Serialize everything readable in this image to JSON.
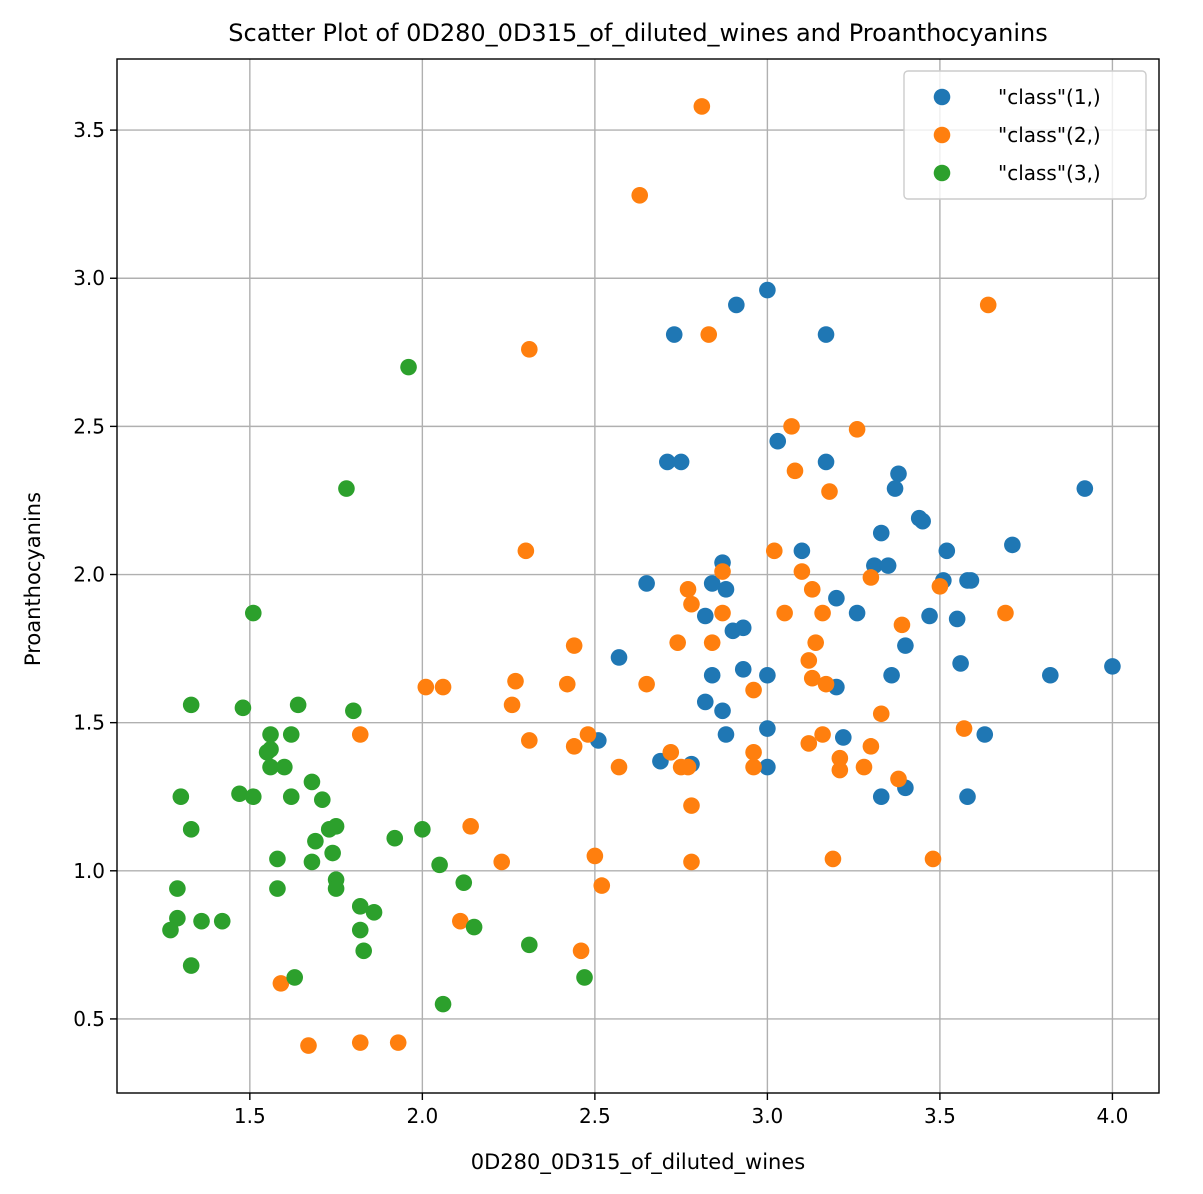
{
  "chart_data": {
    "type": "scatter",
    "title": "Scatter Plot of 0D280_0D315_of_diluted_wines and Proanthocyanins",
    "xlabel": "0D280_0D315_of_diluted_wines",
    "ylabel": "Proanthocyanins",
    "xlim": [
      1.115,
      4.135
    ],
    "ylim": [
      0.25,
      3.74
    ],
    "xticks": [
      1.5,
      2.0,
      2.5,
      3.0,
      3.5,
      4.0
    ],
    "xtick_labels": [
      "1.5",
      "2.0",
      "2.5",
      "3.0",
      "3.5",
      "4.0"
    ],
    "yticks": [
      0.5,
      1.0,
      1.5,
      2.0,
      2.5,
      3.0,
      3.5
    ],
    "ytick_labels": [
      "0.5",
      "1.0",
      "1.5",
      "2.0",
      "2.5",
      "3.0",
      "3.5"
    ],
    "grid": true,
    "legend_position": "top-right",
    "series": [
      {
        "name": "\"class\"(1,)",
        "color": "#1f77b4",
        "points": [
          [
            3.0,
            2.96
          ],
          [
            2.91,
            2.91
          ],
          [
            2.73,
            2.81
          ],
          [
            3.17,
            2.81
          ],
          [
            3.03,
            2.45
          ],
          [
            2.71,
            2.38
          ],
          [
            2.75,
            2.38
          ],
          [
            3.17,
            2.38
          ],
          [
            3.38,
            2.34
          ],
          [
            3.37,
            2.29
          ],
          [
            3.92,
            2.29
          ],
          [
            3.44,
            2.19
          ],
          [
            3.45,
            2.18
          ],
          [
            3.33,
            2.14
          ],
          [
            3.71,
            2.1
          ],
          [
            3.1,
            2.08
          ],
          [
            3.52,
            2.08
          ],
          [
            2.87,
            2.04
          ],
          [
            3.31,
            2.03
          ],
          [
            3.35,
            2.03
          ],
          [
            2.65,
            1.97
          ],
          [
            2.84,
            1.97
          ],
          [
            2.88,
            1.95
          ],
          [
            3.51,
            1.98
          ],
          [
            3.58,
            1.98
          ],
          [
            3.59,
            1.98
          ],
          [
            3.2,
            1.92
          ],
          [
            2.82,
            1.86
          ],
          [
            3.26,
            1.87
          ],
          [
            3.47,
            1.86
          ],
          [
            3.55,
            1.85
          ],
          [
            2.9,
            1.81
          ],
          [
            2.93,
            1.82
          ],
          [
            3.4,
            1.76
          ],
          [
            2.57,
            1.72
          ],
          [
            3.56,
            1.7
          ],
          [
            4.0,
            1.69
          ],
          [
            2.93,
            1.68
          ],
          [
            2.84,
            1.66
          ],
          [
            3.0,
            1.66
          ],
          [
            3.36,
            1.66
          ],
          [
            3.82,
            1.66
          ],
          [
            3.2,
            1.62
          ],
          [
            2.82,
            1.57
          ],
          [
            2.87,
            1.54
          ],
          [
            3.0,
            1.48
          ],
          [
            2.51,
            1.44
          ],
          [
            2.88,
            1.46
          ],
          [
            3.22,
            1.45
          ],
          [
            3.63,
            1.46
          ],
          [
            2.69,
            1.37
          ],
          [
            2.78,
            1.36
          ],
          [
            3.0,
            1.35
          ],
          [
            3.33,
            1.25
          ],
          [
            3.4,
            1.28
          ],
          [
            3.58,
            1.25
          ]
        ]
      },
      {
        "name": "\"class\"(2,)",
        "color": "#ff7f0e",
        "points": [
          [
            2.81,
            3.58
          ],
          [
            2.63,
            3.28
          ],
          [
            3.64,
            2.91
          ],
          [
            2.83,
            2.81
          ],
          [
            2.31,
            2.76
          ],
          [
            3.07,
            2.5
          ],
          [
            3.26,
            2.49
          ],
          [
            3.08,
            2.35
          ],
          [
            3.18,
            2.28
          ],
          [
            2.3,
            2.08
          ],
          [
            3.02,
            2.08
          ],
          [
            2.87,
            2.01
          ],
          [
            3.1,
            2.01
          ],
          [
            3.3,
            1.99
          ],
          [
            3.5,
            1.96
          ],
          [
            2.77,
            1.95
          ],
          [
            3.13,
            1.95
          ],
          [
            2.78,
            1.9
          ],
          [
            2.87,
            1.87
          ],
          [
            3.05,
            1.87
          ],
          [
            3.16,
            1.87
          ],
          [
            3.69,
            1.87
          ],
          [
            3.39,
            1.83
          ],
          [
            2.74,
            1.77
          ],
          [
            2.84,
            1.77
          ],
          [
            3.14,
            1.77
          ],
          [
            2.44,
            1.76
          ],
          [
            3.12,
            1.71
          ],
          [
            3.13,
            1.65
          ],
          [
            2.27,
            1.64
          ],
          [
            2.42,
            1.63
          ],
          [
            2.65,
            1.63
          ],
          [
            3.17,
            1.63
          ],
          [
            2.01,
            1.62
          ],
          [
            2.06,
            1.62
          ],
          [
            2.96,
            1.61
          ],
          [
            2.26,
            1.56
          ],
          [
            3.33,
            1.53
          ],
          [
            3.57,
            1.48
          ],
          [
            1.82,
            1.46
          ],
          [
            2.48,
            1.46
          ],
          [
            3.16,
            1.46
          ],
          [
            2.31,
            1.44
          ],
          [
            3.12,
            1.43
          ],
          [
            2.44,
            1.42
          ],
          [
            3.3,
            1.42
          ],
          [
            2.72,
            1.4
          ],
          [
            2.96,
            1.4
          ],
          [
            3.21,
            1.38
          ],
          [
            2.57,
            1.35
          ],
          [
            2.75,
            1.35
          ],
          [
            2.77,
            1.35
          ],
          [
            2.96,
            1.35
          ],
          [
            3.21,
            1.34
          ],
          [
            3.28,
            1.35
          ],
          [
            3.38,
            1.31
          ],
          [
            2.78,
            1.22
          ],
          [
            2.14,
            1.15
          ],
          [
            2.23,
            1.03
          ],
          [
            2.5,
            1.05
          ],
          [
            2.78,
            1.03
          ],
          [
            3.19,
            1.04
          ],
          [
            3.48,
            1.04
          ],
          [
            2.52,
            0.95
          ],
          [
            2.11,
            0.83
          ],
          [
            2.46,
            0.73
          ],
          [
            1.59,
            0.62
          ],
          [
            1.67,
            0.41
          ],
          [
            1.82,
            0.42
          ],
          [
            1.93,
            0.42
          ]
        ]
      },
      {
        "name": "\"class\"(3,)",
        "color": "#2ca02c",
        "points": [
          [
            1.96,
            2.7
          ],
          [
            1.78,
            2.29
          ],
          [
            1.51,
            1.87
          ],
          [
            1.33,
            1.56
          ],
          [
            1.64,
            1.56
          ],
          [
            1.48,
            1.55
          ],
          [
            1.8,
            1.54
          ],
          [
            1.56,
            1.46
          ],
          [
            1.62,
            1.46
          ],
          [
            1.55,
            1.4
          ],
          [
            1.56,
            1.41
          ],
          [
            1.56,
            1.35
          ],
          [
            1.6,
            1.35
          ],
          [
            1.68,
            1.3
          ],
          [
            1.47,
            1.26
          ],
          [
            1.3,
            1.25
          ],
          [
            1.51,
            1.25
          ],
          [
            1.62,
            1.25
          ],
          [
            1.71,
            1.24
          ],
          [
            1.33,
            1.14
          ],
          [
            1.73,
            1.14
          ],
          [
            1.75,
            1.15
          ],
          [
            2.0,
            1.14
          ],
          [
            1.92,
            1.11
          ],
          [
            1.69,
            1.1
          ],
          [
            1.74,
            1.06
          ],
          [
            1.58,
            1.04
          ],
          [
            1.68,
            1.03
          ],
          [
            2.05,
            1.02
          ],
          [
            1.75,
            0.97
          ],
          [
            2.12,
            0.96
          ],
          [
            1.29,
            0.94
          ],
          [
            1.58,
            0.94
          ],
          [
            1.75,
            0.94
          ],
          [
            1.82,
            0.88
          ],
          [
            1.86,
            0.86
          ],
          [
            1.29,
            0.84
          ],
          [
            1.36,
            0.83
          ],
          [
            1.42,
            0.83
          ],
          [
            2.15,
            0.81
          ],
          [
            1.27,
            0.8
          ],
          [
            1.82,
            0.8
          ],
          [
            2.31,
            0.75
          ],
          [
            1.83,
            0.73
          ],
          [
            1.33,
            0.68
          ],
          [
            1.63,
            0.64
          ],
          [
            2.47,
            0.64
          ],
          [
            2.06,
            0.55
          ]
        ]
      }
    ]
  }
}
